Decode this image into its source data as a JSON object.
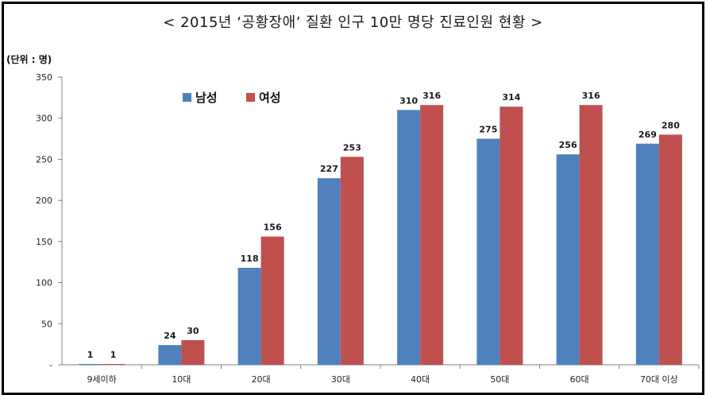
{
  "title": "< 2015년 ‘공황장애’ 질환 인구 10만 명당 진료인원 현황 >",
  "unit_label": "(단위 : 명)",
  "colors": {
    "male": "#4f81bd",
    "female": "#c0504d",
    "axis": "#808080"
  },
  "chart_data": {
    "type": "bar",
    "title": "< 2015년 ‘공황장애’ 질환 인구 10만 명당 진료인원 현황 >",
    "xlabel": "",
    "ylabel": "(단위 : 명)",
    "categories": [
      "9세이하",
      "10대",
      "20대",
      "30대",
      "40대",
      "50대",
      "60대",
      "70대 이상"
    ],
    "series": [
      {
        "name": "남성",
        "values": [
          1,
          24,
          118,
          227,
          310,
          275,
          256,
          269
        ]
      },
      {
        "name": "여성",
        "values": [
          1,
          30,
          156,
          253,
          316,
          314,
          316,
          280
        ]
      }
    ],
    "ylim": [
      0,
      350
    ],
    "yticks": [
      0,
      50,
      100,
      150,
      200,
      250,
      300,
      350
    ],
    "ytick_labels": [
      "-",
      "50",
      "100",
      "150",
      "200",
      "250",
      "300",
      "350"
    ],
    "grid": false,
    "legend_position": "top-left"
  }
}
